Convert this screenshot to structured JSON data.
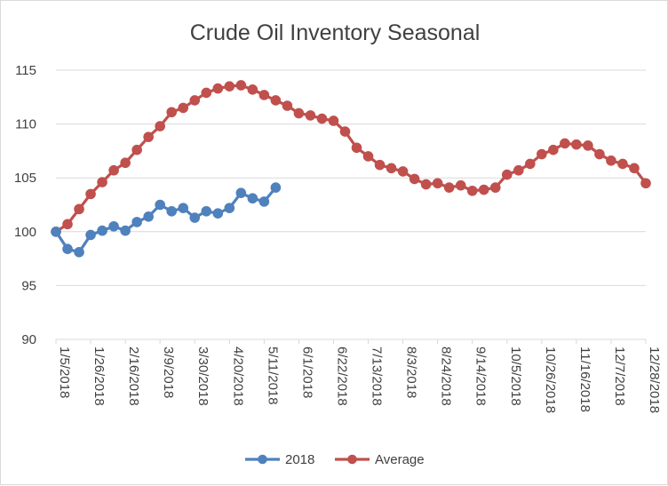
{
  "chart_data": {
    "type": "line",
    "title": "Crude Oil Inventory Seasonal",
    "xlabel": "",
    "ylabel": "",
    "ylim": [
      90,
      115
    ],
    "y_ticks": [
      90,
      95,
      100,
      105,
      110,
      115
    ],
    "grid": true,
    "legend_position": "bottom",
    "x_tick_labels": [
      "1/5/2018",
      "1/26/2018",
      "2/16/2018",
      "3/9/2018",
      "3/30/2018",
      "4/20/2018",
      "5/11/2018",
      "6/1/2018",
      "6/22/2018",
      "7/13/2018",
      "8/3/2018",
      "8/24/2018",
      "9/14/2018",
      "10/5/2018",
      "10/26/2018",
      "11/16/2018",
      "12/7/2018",
      "12/28/2018"
    ],
    "series": [
      {
        "name": "2018",
        "color": "#4f81bd",
        "values": [
          100.0,
          98.4,
          98.1,
          99.7,
          100.1,
          100.5,
          100.1,
          100.9,
          101.4,
          102.5,
          101.9,
          102.2,
          101.3,
          101.9,
          101.7,
          102.2,
          103.6,
          103.1,
          102.8,
          104.1
        ]
      },
      {
        "name": "Average",
        "color": "#c0504d",
        "values": [
          100.0,
          100.7,
          102.1,
          103.5,
          104.6,
          105.7,
          106.4,
          107.6,
          108.8,
          109.8,
          111.1,
          111.5,
          112.2,
          112.9,
          113.3,
          113.5,
          113.6,
          113.2,
          112.7,
          112.2,
          111.7,
          111.0,
          110.8,
          110.5,
          110.3,
          109.3,
          107.8,
          107.0,
          106.2,
          105.9,
          105.6,
          104.9,
          104.4,
          104.5,
          104.1,
          104.3,
          103.8,
          103.9,
          104.1,
          105.3,
          105.7,
          106.3,
          107.2,
          107.6,
          108.2,
          108.1,
          108.0,
          107.2,
          106.6,
          106.3,
          105.9,
          104.5
        ]
      }
    ]
  }
}
